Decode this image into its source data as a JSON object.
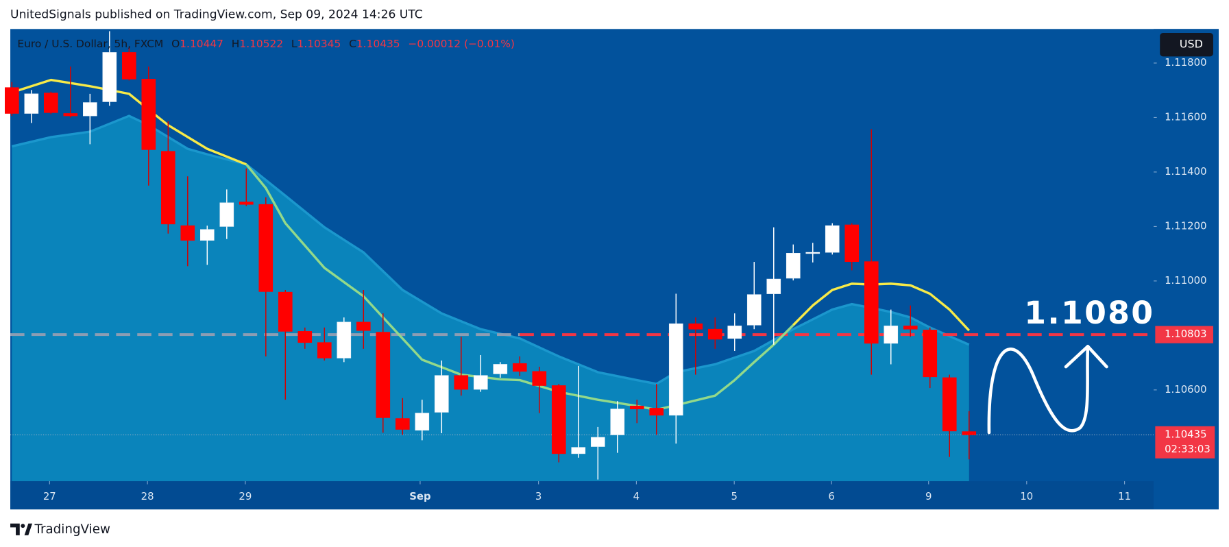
{
  "header": {
    "attribution": "UnitedSignals published on TradingView.com, Sep 09, 2024 14:26 UTC"
  },
  "footer": {
    "brand": "TradingView"
  },
  "chart_data": {
    "type": "candlestick",
    "symbol": "Euro / U.S. Dollar, 5h, FXCM",
    "ohlc_legend": [
      {
        "key": "O",
        "value": "1.10447"
      },
      {
        "key": "H",
        "value": "1.10522"
      },
      {
        "key": "L",
        "value": "1.10345"
      },
      {
        "key": "C",
        "value": "1.10435"
      }
    ],
    "change": "−0.00012 (−0.01%)",
    "currency": "USD",
    "up_color": "#ffffff",
    "down_color": "#ff0000",
    "open": [
      1.1171,
      1.11615,
      1.1169,
      1.11615,
      1.11606,
      1.11658,
      1.11839,
      1.11741,
      1.11476,
      1.11203,
      1.11149,
      1.112,
      1.1129,
      1.11281,
      1.10959,
      1.10815,
      1.10774,
      1.10717,
      1.10849,
      1.10812,
      1.10495,
      1.10452,
      1.10518,
      1.10653,
      1.10602,
      1.10659,
      1.10697,
      1.10668,
      1.10616,
      1.10366,
      1.10392,
      1.10435,
      1.10541,
      1.10533,
      1.10507,
      1.10843,
      1.10823,
      1.10789,
      1.10838,
      1.10953,
      1.1101,
      1.11102,
      1.11105,
      1.11206,
      1.11071,
      1.10771,
      1.10835,
      1.1082,
      1.10645,
      1.10447
    ],
    "high": [
      1.1173,
      1.11701,
      1.11695,
      1.11787,
      1.11687,
      1.11917,
      1.11859,
      1.11787,
      1.11586,
      1.11384,
      1.11203,
      1.11336,
      1.11413,
      1.11307,
      1.10967,
      1.10829,
      1.10829,
      1.10866,
      1.10967,
      1.10881,
      1.1057,
      1.10564,
      1.10708,
      1.10795,
      1.10728,
      1.10702,
      1.10723,
      1.10685,
      1.10622,
      1.10688,
      1.10464,
      1.10559,
      1.10564,
      1.10622,
      1.10953,
      1.10866,
      1.10866,
      1.10881,
      1.1107,
      1.11197,
      1.11134,
      1.1114,
      1.11212,
      1.11212,
      1.11557,
      1.10895,
      1.1091,
      1.10829,
      1.10656,
      1.10522
    ],
    "low": [
      1.11606,
      1.1158,
      1.11612,
      1.116,
      1.11502,
      1.11643,
      1.11736,
      1.1135,
      1.11174,
      1.11054,
      1.11059,
      1.11154,
      1.11275,
      1.10723,
      1.10564,
      1.10751,
      1.10708,
      1.10702,
      1.10751,
      1.10443,
      1.10435,
      1.10415,
      1.10441,
      1.10579,
      1.10593,
      1.10645,
      1.10651,
      1.10515,
      1.10334,
      1.10351,
      1.10271,
      1.10369,
      1.10478,
      1.10435,
      1.10403,
      1.10656,
      1.10751,
      1.10743,
      1.10823,
      1.10766,
      1.11002,
      1.11068,
      1.11097,
      1.11039,
      1.10656,
      1.10694,
      1.10795,
      1.10607,
      1.10354,
      1.10345
    ],
    "close": [
      1.11615,
      1.11687,
      1.11618,
      1.11606,
      1.11655,
      1.11839,
      1.11741,
      1.11482,
      1.11209,
      1.11149,
      1.11189,
      1.11287,
      1.11281,
      1.10961,
      1.10815,
      1.10774,
      1.10717,
      1.10849,
      1.10818,
      1.10498,
      1.10455,
      1.10515,
      1.10653,
      1.10602,
      1.10653,
      1.10694,
      1.10668,
      1.10616,
      1.10366,
      1.10389,
      1.10426,
      1.1053,
      1.1053,
      1.10507,
      1.10843,
      1.10823,
      1.10786,
      1.10835,
      1.1095,
      1.11007,
      1.11102,
      1.11105,
      1.11203,
      1.11071,
      1.10771,
      1.10835,
      1.10823,
      1.10648,
      1.10449,
      1.10435
    ],
    "band": {
      "color": "#0a84bb",
      "edge_color": "#1b97cd",
      "x": [
        0,
        2,
        4,
        6,
        7,
        9,
        10,
        12,
        14,
        16,
        18,
        20,
        22,
        24,
        26,
        28,
        30,
        32,
        33,
        34,
        36,
        38,
        40,
        42,
        43,
        44,
        45,
        46,
        47,
        49
      ],
      "values": [
        1.11494,
        1.11528,
        1.11548,
        1.11606,
        1.11572,
        1.11485,
        1.11465,
        1.11428,
        1.11313,
        1.11197,
        1.11105,
        1.10967,
        1.10881,
        1.10823,
        1.10789,
        1.10723,
        1.10665,
        1.10636,
        1.10622,
        1.10665,
        1.10694,
        1.10743,
        1.10823,
        1.10895,
        1.10915,
        1.10901,
        1.10886,
        1.10866,
        1.10829,
        1.10766
      ]
    },
    "lines": [
      {
        "color": "#f7ea48",
        "x": [
          0,
          2,
          4,
          6,
          7,
          8,
          10,
          12
        ],
        "values": [
          1.11692,
          1.11738,
          1.11715,
          1.11687,
          1.11629,
          1.11572,
          1.11485,
          1.11428
        ]
      },
      {
        "color": "#93d98a",
        "x": [
          12,
          13,
          14,
          16,
          18,
          21,
          23,
          25,
          26,
          28,
          30,
          32,
          33,
          34,
          36,
          37,
          38,
          39,
          40
        ],
        "values": [
          1.11428,
          1.11341,
          1.11212,
          1.11048,
          1.10944,
          1.10711,
          1.10656,
          1.10639,
          1.10636,
          1.10593,
          1.10564,
          1.10541,
          1.10527,
          1.10544,
          1.10579,
          1.10636,
          1.10702,
          1.10766,
          1.10838
        ]
      },
      {
        "color": "#f7ea48",
        "x": [
          40,
          41,
          42,
          43,
          44,
          45,
          46,
          47,
          48,
          49
        ],
        "values": [
          1.10838,
          1.1091,
          1.10967,
          1.1099,
          1.10987,
          1.1099,
          1.10984,
          1.10953,
          1.10895,
          1.10818
        ]
      }
    ],
    "levels": [
      {
        "value": 1.10803,
        "label": "1.10803",
        "color": "#f23645"
      }
    ],
    "last_price": {
      "value": 1.10435,
      "label": "1.10435",
      "countdown": "02:33:03",
      "color": "#f23645"
    },
    "annotation": "1.1080",
    "xlim": [
      -0.08,
      58.45
    ],
    "xticks": [
      {
        "value": 1.93,
        "label": "27"
      },
      {
        "value": 6.94,
        "label": "28"
      },
      {
        "value": 11.95,
        "label": "29"
      },
      {
        "value": 20.9,
        "label": "Sep"
      },
      {
        "value": 26.96,
        "label": "3"
      },
      {
        "value": 31.97,
        "label": "4"
      },
      {
        "value": 36.98,
        "label": "5"
      },
      {
        "value": 41.96,
        "label": "6"
      },
      {
        "value": 46.93,
        "label": "9"
      },
      {
        "value": 51.95,
        "label": "10"
      },
      {
        "value": 56.96,
        "label": "11"
      }
    ],
    "ylim": [
      1.10265,
      1.11925
    ],
    "yticks": [
      {
        "value": 1.118,
        "label": "1.11800"
      },
      {
        "value": 1.116,
        "label": "1.11600"
      },
      {
        "value": 1.114,
        "label": "1.11400"
      },
      {
        "value": 1.112,
        "label": "1.11200"
      },
      {
        "value": 1.11,
        "label": "1.11000"
      },
      {
        "value": 1.106,
        "label": "1.10600"
      }
    ]
  }
}
